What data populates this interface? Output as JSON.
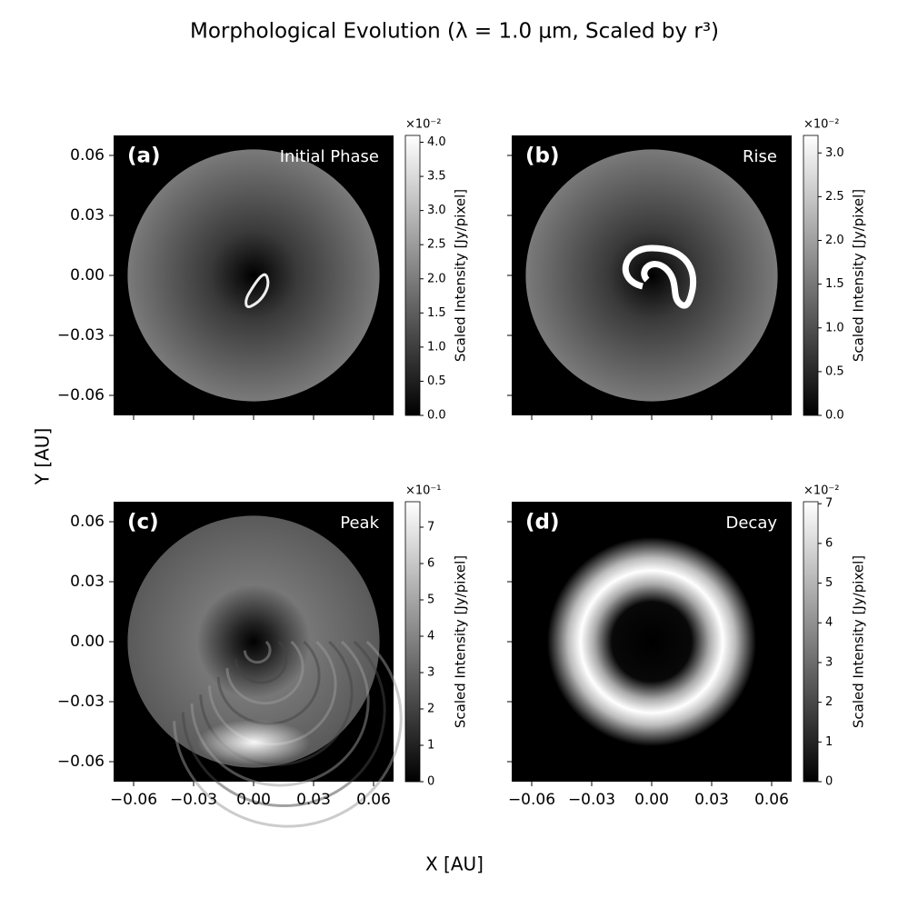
{
  "figure": {
    "title": "Morphological Evolution (λ = 1.0 μm, Scaled by r³)",
    "x_label": "X [AU]",
    "y_label": "Y [AU]",
    "xlim": [
      -0.07,
      0.07
    ],
    "ylim": [
      -0.07,
      0.07
    ],
    "xticks": [
      {
        "value": -0.06,
        "label": "−0.06"
      },
      {
        "value": -0.03,
        "label": "−0.03"
      },
      {
        "value": 0,
        "label": "0.00"
      },
      0.03,
      0.06
    ],
    "yticks": [
      {
        "value": -0.06,
        "label": "−0.06"
      },
      {
        "value": -0.03,
        "label": "−0.03"
      },
      {
        "value": 0,
        "label": "0.00"
      },
      0.03,
      0.06
    ]
  },
  "chart_data": [
    {
      "type": "image",
      "label": "(a)",
      "title": "Initial Phase",
      "colorbar": {
        "label": "Scaled Intensity [Jy/pixel]",
        "scale_label": "×10⁻²",
        "lim": [
          0,
          4.1
        ],
        "ticks": [
          {
            "value": 0,
            "label": "0.0"
          },
          0.5,
          {
            "value": 1,
            "label": "1.0"
          },
          1.5,
          {
            "value": 2,
            "label": "2.0"
          },
          2.5,
          {
            "value": 3,
            "label": "3.0"
          },
          3.5,
          {
            "value": 4,
            "label": "4.0"
          }
        ]
      }
    },
    {
      "type": "image",
      "label": "(b)",
      "title": "Rise",
      "colorbar": {
        "label": "Scaled Intensity [Jy/pixel]",
        "scale_label": "×10⁻²",
        "lim": [
          0,
          3.2
        ],
        "ticks": [
          {
            "value": 0,
            "label": "0.0"
          },
          0.5,
          {
            "value": 1,
            "label": "1.0"
          },
          1.5,
          {
            "value": 2,
            "label": "2.0"
          },
          2.5,
          {
            "value": 3,
            "label": "3.0"
          }
        ]
      }
    },
    {
      "type": "image",
      "label": "(c)",
      "title": "Peak",
      "colorbar": {
        "label": "Scaled Intensity [Jy/pixel]",
        "scale_label": "×10⁻¹",
        "lim": [
          0,
          7.7
        ],
        "ticks": [
          0,
          1,
          2,
          3,
          4,
          5,
          6,
          7
        ]
      }
    },
    {
      "type": "image",
      "label": "(d)",
      "title": "Decay",
      "colorbar": {
        "label": "Scaled Intensity [Jy/pixel]",
        "scale_label": "×10⁻²",
        "lim": [
          0,
          7.05
        ],
        "ticks": [
          0,
          1,
          2,
          3,
          4,
          5,
          6,
          7
        ]
      }
    }
  ]
}
